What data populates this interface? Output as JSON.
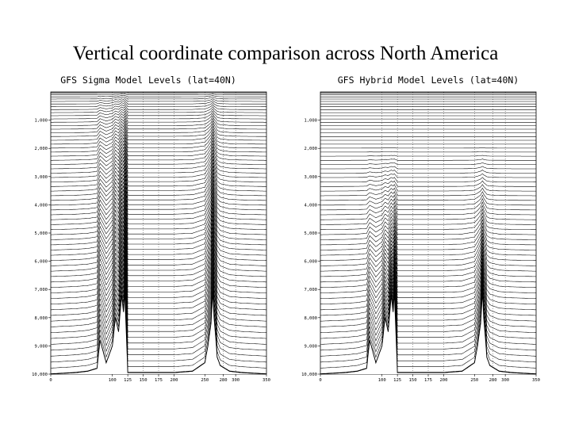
{
  "slide": {
    "title": "Vertical coordinate comparison across North America"
  },
  "chart_data": [
    {
      "type": "line",
      "title": "GFS Sigma Model Levels (lat=40N)",
      "xlabel": "",
      "ylabel": "",
      "coordinate": "sigma",
      "x_ticks": [
        "0",
        "100",
        "125",
        "150",
        "175",
        "200",
        "250",
        "280",
        "300",
        "350"
      ],
      "y_ticks": [
        "1,000",
        "2,000",
        "3,000",
        "4,000",
        "5,000",
        "6,000",
        "7,000",
        "8,000",
        "9,000",
        "10,000"
      ],
      "ylim": [
        0,
        10000
      ],
      "grid": true,
      "n_levels": 64,
      "terrain": {
        "x": [
          0,
          40,
          60,
          75,
          80,
          90,
          100,
          105,
          110,
          115,
          118,
          120,
          122,
          125,
          135,
          145,
          160,
          170,
          180,
          200,
          230,
          250,
          255,
          260,
          263,
          265,
          268,
          270,
          275,
          290,
          310,
          350
        ],
        "z": [
          10000,
          9950,
          9900,
          9800,
          8800,
          9600,
          9000,
          8000,
          8500,
          7200,
          7800,
          7100,
          8200,
          9950,
          9950,
          9950,
          9950,
          9950,
          9950,
          9950,
          9900,
          9600,
          9000,
          8200,
          7100,
          8000,
          8800,
          9400,
          9700,
          9900,
          9950,
          10000
        ]
      }
    },
    {
      "type": "line",
      "title": "GFS Hybrid Model Levels (lat=40N)",
      "xlabel": "",
      "ylabel": "",
      "coordinate": "hybrid",
      "x_ticks": [
        "0",
        "100",
        "125",
        "150",
        "175",
        "200",
        "250",
        "280",
        "300",
        "350"
      ],
      "y_ticks": [
        "1,000",
        "2,000",
        "3,000",
        "4,000",
        "5,000",
        "6,000",
        "7,000",
        "8,000",
        "9,000",
        "10,000"
      ],
      "ylim": [
        0,
        10000
      ],
      "grid": true,
      "n_levels": 64,
      "terrain": {
        "x": [
          0,
          40,
          60,
          75,
          80,
          90,
          100,
          105,
          110,
          115,
          118,
          120,
          122,
          125,
          135,
          145,
          160,
          170,
          180,
          200,
          230,
          250,
          255,
          260,
          263,
          265,
          268,
          270,
          275,
          290,
          310,
          350
        ],
        "z": [
          10000,
          9950,
          9900,
          9800,
          8800,
          9600,
          9000,
          8000,
          8500,
          7200,
          7800,
          7100,
          8200,
          9950,
          9950,
          9950,
          9950,
          9950,
          9950,
          9950,
          9900,
          9600,
          9000,
          8200,
          7100,
          8000,
          8800,
          9400,
          9700,
          9900,
          9950,
          10000
        ]
      }
    }
  ]
}
